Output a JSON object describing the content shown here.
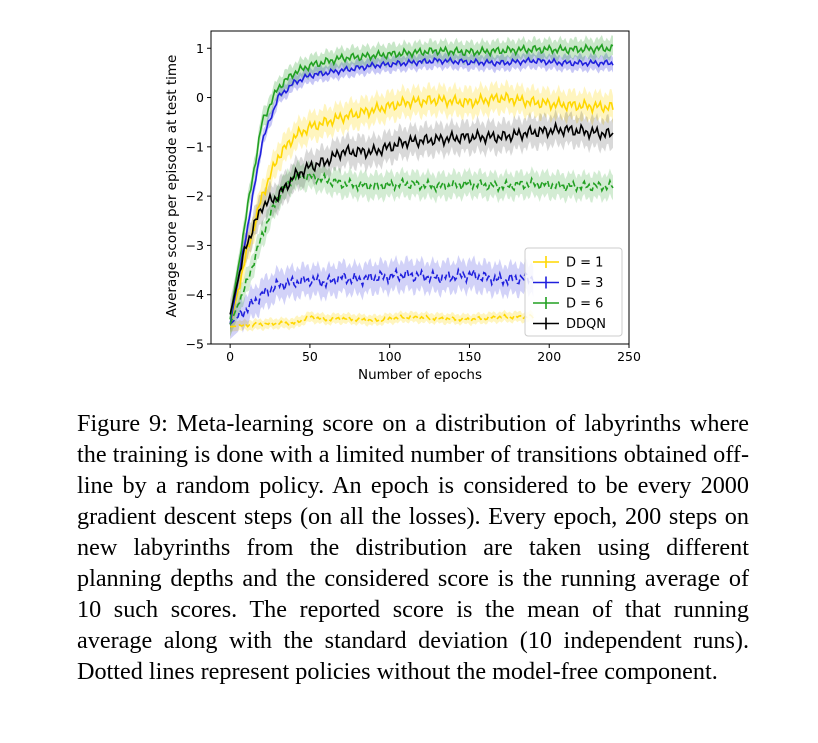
{
  "chart_data": {
    "type": "line",
    "title": "",
    "xlabel": "Number of epochs",
    "ylabel": "Average score per episode at test time",
    "xlim": [
      -12,
      250
    ],
    "ylim": [
      -5,
      1.35
    ],
    "xticks": [
      0,
      50,
      100,
      150,
      200,
      250
    ],
    "yticks": [
      -5,
      -4,
      -3,
      -2,
      -1,
      0,
      1
    ],
    "xtick_labels": [
      "0",
      "50",
      "100",
      "150",
      "200",
      "250"
    ],
    "ytick_labels": [
      "−5",
      "−4",
      "−3",
      "−2",
      "−1",
      "0",
      "1"
    ],
    "legend": {
      "placement": "lower-right",
      "entries": [
        "D = 1",
        "D = 3",
        "D = 6",
        "DDQN"
      ]
    },
    "grid": false,
    "series": [
      {
        "name": "D = 1",
        "style": "solid",
        "color": "#FFD700",
        "band_alpha": 0.25,
        "band": 0.28,
        "x": [
          0,
          10,
          20,
          30,
          40,
          50,
          70,
          90,
          110,
          130,
          150,
          170,
          190,
          210,
          240
        ],
        "y": [
          -4.6,
          -3.2,
          -2.0,
          -1.2,
          -0.8,
          -0.6,
          -0.4,
          -0.25,
          -0.1,
          -0.05,
          -0.1,
          0.0,
          -0.1,
          -0.15,
          -0.2
        ]
      },
      {
        "name": "D = 1",
        "style": "dashed",
        "color": "#FFD700",
        "band_alpha": 0.25,
        "band": 0.1,
        "x": [
          0,
          10,
          20,
          30,
          40,
          50,
          60,
          70,
          80,
          90,
          110,
          130,
          150,
          170,
          190
        ],
        "y": [
          -4.65,
          -4.62,
          -4.6,
          -4.58,
          -4.58,
          -4.45,
          -4.5,
          -4.48,
          -4.5,
          -4.52,
          -4.45,
          -4.48,
          -4.5,
          -4.45,
          -4.45
        ]
      },
      {
        "name": "D = 3",
        "style": "solid",
        "color": "#2020DD",
        "band_alpha": 0.25,
        "band": 0.15,
        "x": [
          0,
          10,
          20,
          30,
          40,
          50,
          70,
          90,
          110,
          130,
          150,
          170,
          190,
          210,
          240
        ],
        "y": [
          -4.6,
          -2.8,
          -0.9,
          0.0,
          0.3,
          0.45,
          0.55,
          0.65,
          0.7,
          0.75,
          0.72,
          0.7,
          0.75,
          0.7,
          0.7
        ]
      },
      {
        "name": "D = 3",
        "style": "dashed",
        "color": "#2020DD",
        "band_alpha": 0.2,
        "band": 0.3,
        "x": [
          0,
          10,
          20,
          30,
          40,
          50,
          60,
          70,
          80,
          90,
          110,
          130,
          150,
          170,
          190
        ],
        "y": [
          -4.6,
          -4.3,
          -4.0,
          -3.8,
          -3.75,
          -3.7,
          -3.75,
          -3.65,
          -3.7,
          -3.65,
          -3.6,
          -3.65,
          -3.6,
          -3.7,
          -3.65
        ]
      },
      {
        "name": "D = 6",
        "style": "solid",
        "color": "#22A022",
        "band_alpha": 0.25,
        "band": 0.2,
        "x": [
          0,
          10,
          20,
          30,
          40,
          50,
          70,
          90,
          110,
          130,
          150,
          170,
          190,
          210,
          240
        ],
        "y": [
          -4.5,
          -2.4,
          -0.5,
          0.2,
          0.5,
          0.65,
          0.8,
          0.85,
          0.9,
          0.95,
          0.92,
          0.95,
          0.98,
          0.97,
          1.0
        ]
      },
      {
        "name": "D = 6",
        "style": "dashed",
        "color": "#22A022",
        "band_alpha": 0.2,
        "band": 0.25,
        "x": [
          0,
          10,
          20,
          30,
          40,
          50,
          70,
          90,
          110,
          130,
          150,
          170,
          190,
          210,
          240
        ],
        "y": [
          -4.6,
          -3.8,
          -2.8,
          -2.0,
          -1.6,
          -1.6,
          -1.75,
          -1.8,
          -1.75,
          -1.8,
          -1.75,
          -1.8,
          -1.75,
          -1.8,
          -1.8
        ]
      },
      {
        "name": "DDQN",
        "style": "solid",
        "color": "#000000",
        "band_alpha": 0.15,
        "band": 0.3,
        "x": [
          0,
          10,
          20,
          30,
          40,
          50,
          60,
          70,
          90,
          110,
          130,
          150,
          170,
          190,
          210,
          240
        ],
        "y": [
          -4.4,
          -3.0,
          -2.2,
          -2.0,
          -1.6,
          -1.4,
          -1.3,
          -1.1,
          -1.1,
          -0.9,
          -0.85,
          -0.8,
          -0.8,
          -0.7,
          -0.65,
          -0.75
        ]
      }
    ]
  },
  "caption": "Figure 9: Meta-learning score on a distribution of labyrinths where the training is done with a limited number of transitions obtained off-line by a random policy. An epoch is considered to be every 2000 gradient descent steps (on all the losses). Every epoch, 200 steps on new labyrinths from the distribution are taken using different planning depths and the considered score is the running average of 10 such scores. The reported score is the mean of that running average along with the standard deviation (10 independent runs). Dotted lines represent policies without the model-free component."
}
